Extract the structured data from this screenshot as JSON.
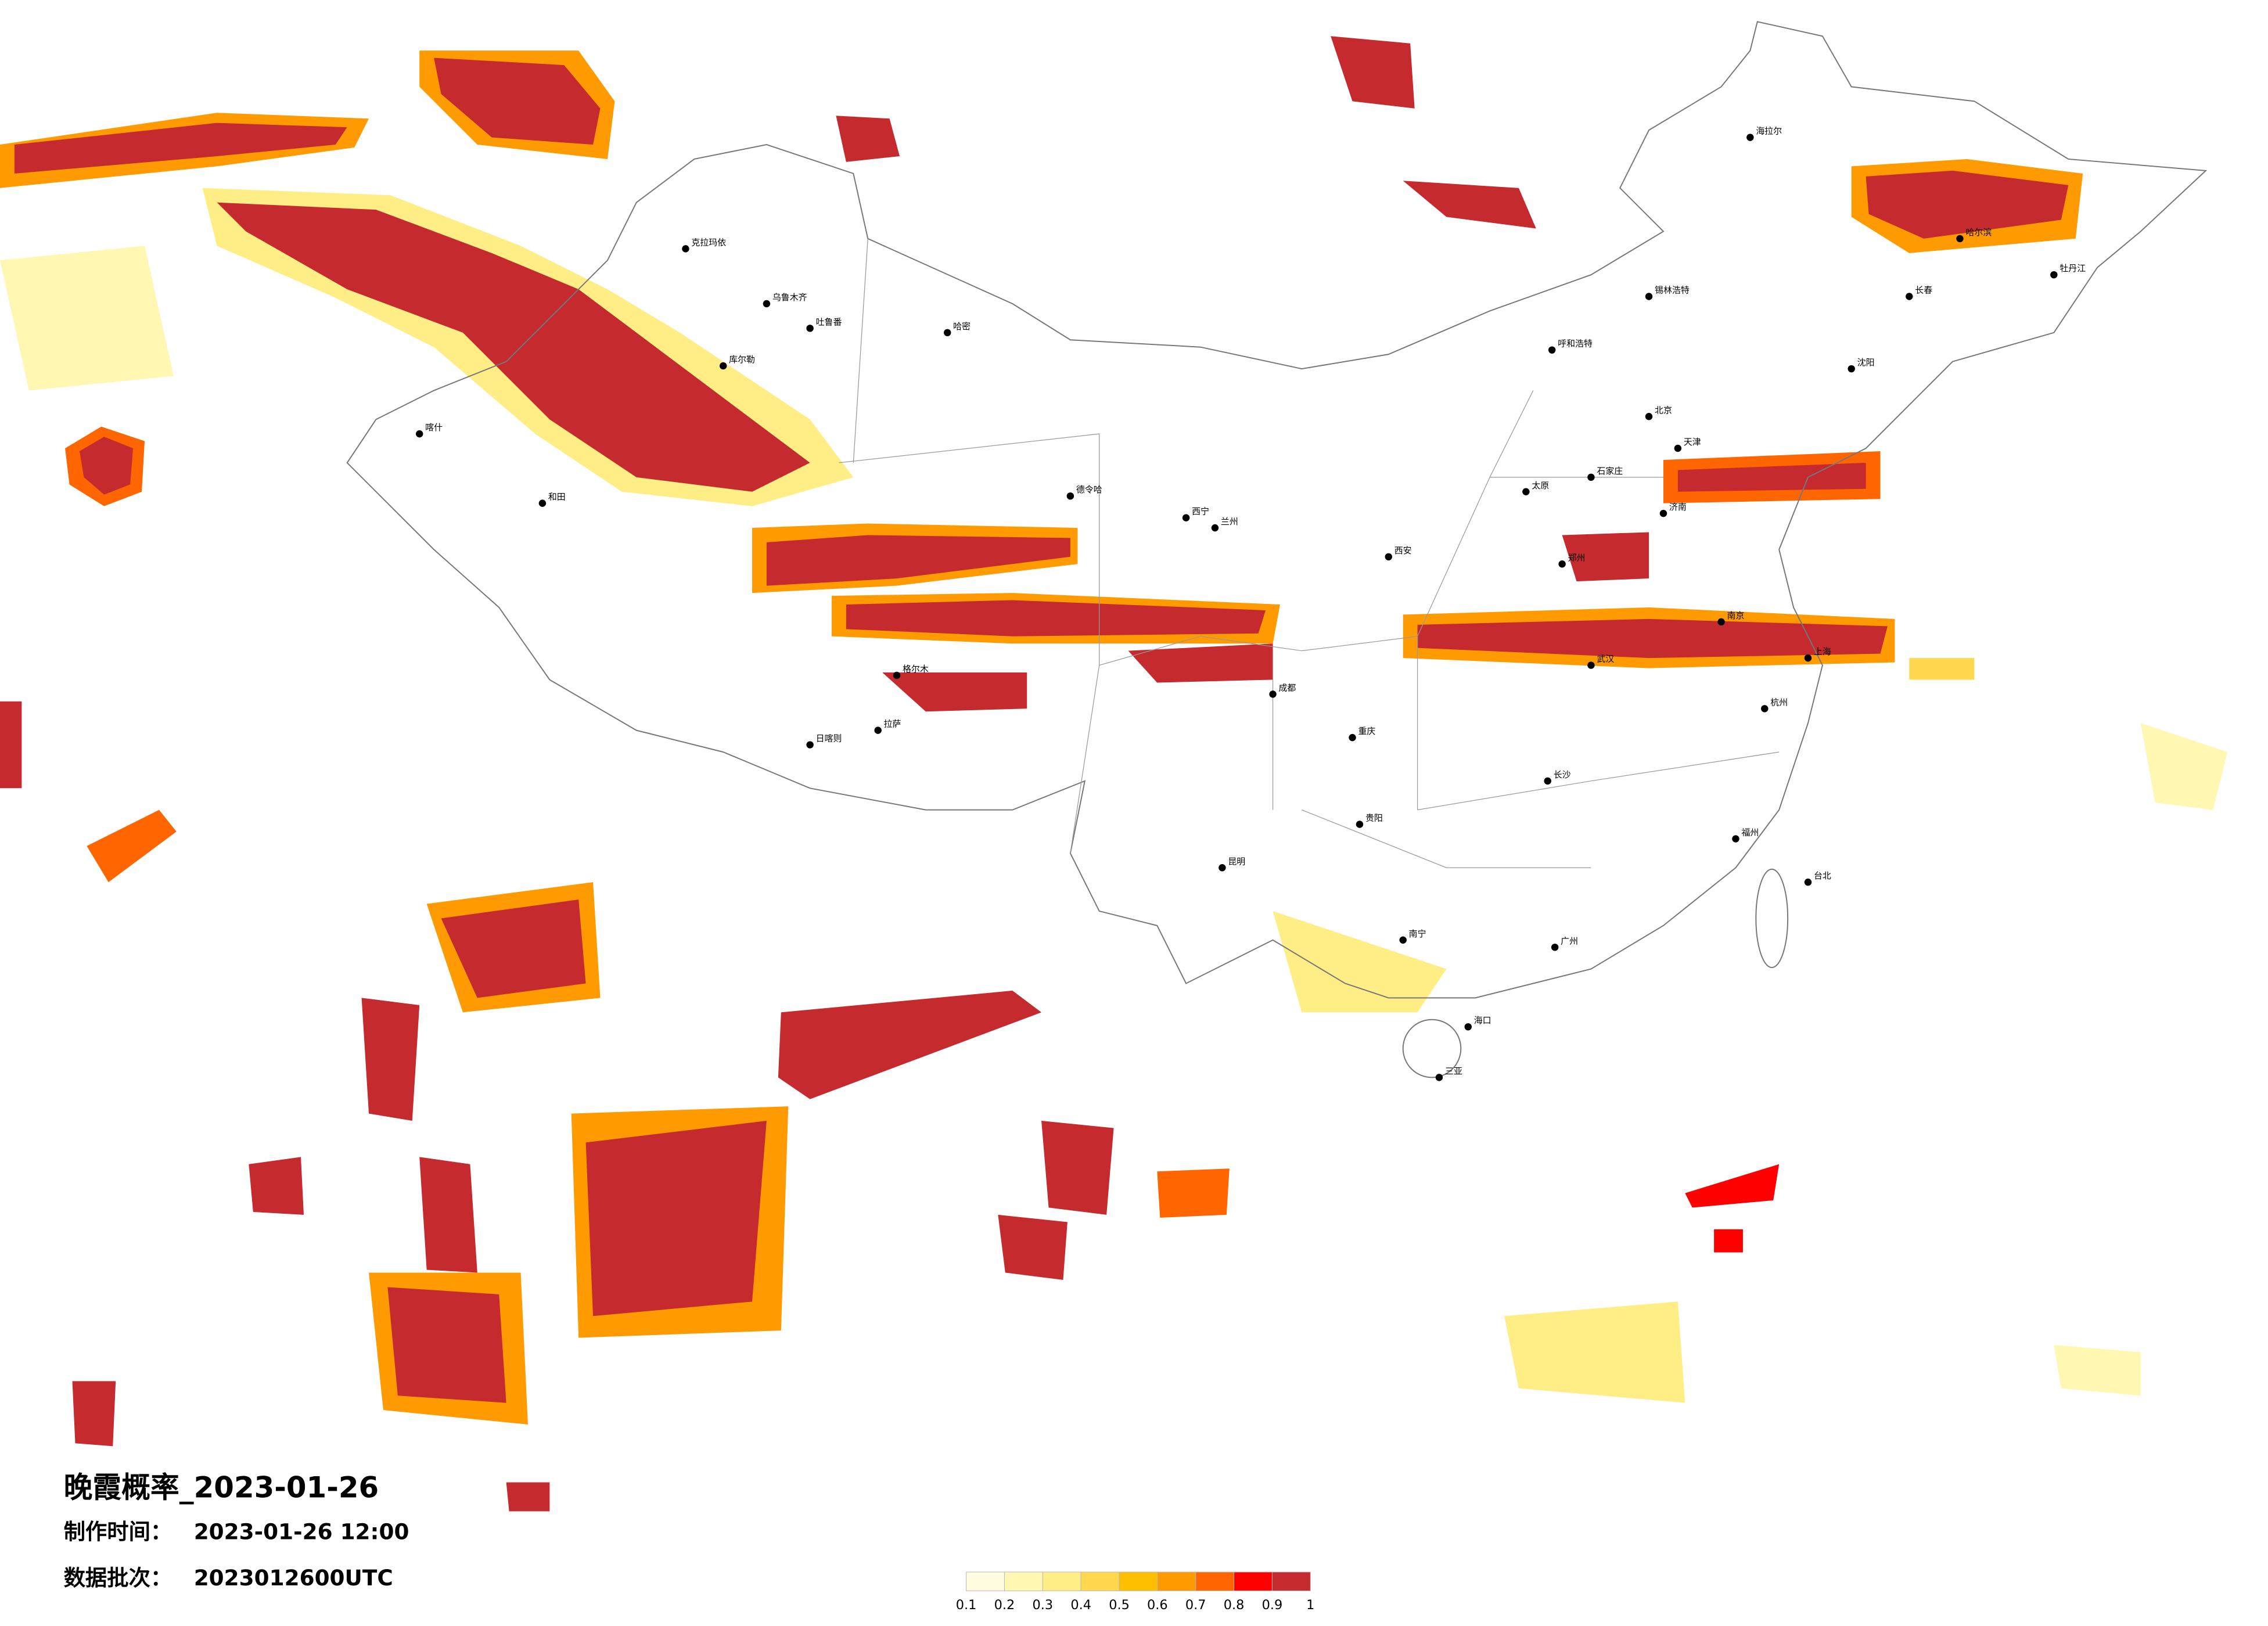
{
  "title": "晚霞概率_2023-01-26",
  "info": [
    {
      "label": "制作时间：",
      "value": "2023-01-26 12:00"
    },
    {
      "label": "数据批次：",
      "value": "2023012600UTC"
    }
  ],
  "colorbar": {
    "ticks": [
      0.1,
      0.2,
      0.3,
      0.4,
      0.5,
      0.6,
      0.7,
      0.8,
      0.9,
      1
    ],
    "colors": [
      "#fffce0",
      "#fff7b2",
      "#ffed85",
      "#ffd84f",
      "#ffbf00",
      "#ff9a00",
      "#ff6600",
      "#ff0000",
      "#c52a2e"
    ]
  },
  "cities": [
    "克拉玛依",
    "乌鲁木齐",
    "吐鲁番",
    "哈密",
    "喀什",
    "和田",
    "库尔勒",
    "德令哈",
    "格尔木",
    "拉萨",
    "日喀则",
    "呼和浩特",
    "北京",
    "天津",
    "石家庄",
    "太原",
    "济南",
    "郑州",
    "西安",
    "兰州",
    "西宁",
    "成都",
    "重庆",
    "贵阳",
    "昆明",
    "南宁",
    "广州",
    "长沙",
    "武汉",
    "南京",
    "上海",
    "杭州",
    "福州",
    "台北",
    "海口",
    "哈尔滨",
    "长春",
    "沈阳",
    "海拉尔",
    "锡林浩特",
    "牡丹江",
    "三亚"
  ]
}
